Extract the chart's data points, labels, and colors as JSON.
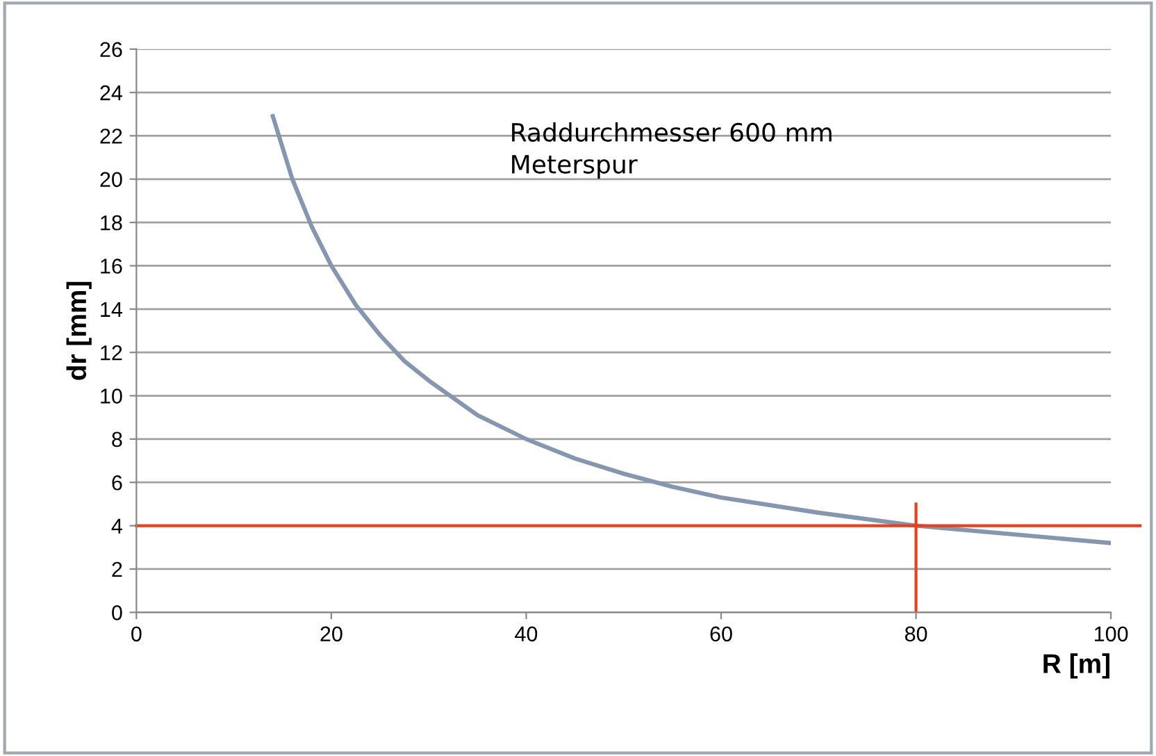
{
  "chart_data": {
    "type": "line",
    "xlabel": "R [m]",
    "ylabel": "dr [mm]",
    "annotations": [
      "Raddurchmesser 600 mm\nMeterspur"
    ],
    "series": [
      {
        "color": "#8496b0",
        "x": [
          14,
          16,
          18,
          20,
          22.5,
          25,
          27.5,
          30,
          35,
          40,
          45,
          50,
          55,
          60,
          70,
          80,
          90,
          100
        ],
        "values": [
          22.9,
          20,
          17.8,
          16,
          14.2,
          12.8,
          11.6,
          10.7,
          9.1,
          8,
          7.1,
          6.4,
          5.8,
          5.3,
          4.6,
          4,
          3.6,
          3.2
        ]
      }
    ],
    "xlim": [
      0,
      100
    ],
    "xticks": [
      0,
      20,
      40,
      60,
      80,
      100
    ],
    "ylim": [
      0,
      26
    ],
    "yticks": [
      0,
      2,
      4,
      6,
      8,
      10,
      12,
      14,
      16,
      18,
      20,
      22,
      24,
      26
    ],
    "grid": "y",
    "legend": false,
    "marker": "none",
    "line_style": "solid",
    "ref_lines": [
      {
        "axis": "y",
        "value": 4,
        "color": "#e8401c"
      },
      {
        "axis": "x",
        "value": 80,
        "color": "#e8401c"
      }
    ]
  }
}
